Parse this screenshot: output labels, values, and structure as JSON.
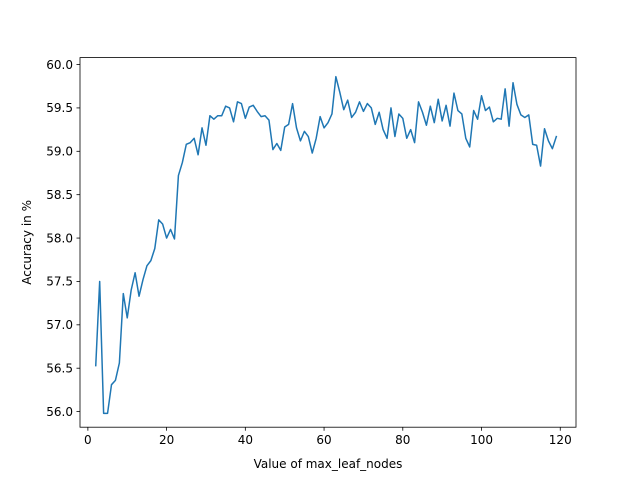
{
  "chart_data": {
    "type": "line",
    "title": "",
    "xlabel": "Value of max_leaf_nodes",
    "ylabel": "Accuracy in %",
    "xlim": [
      -2,
      124
    ],
    "ylim": [
      55.82,
      60.08
    ],
    "xticks": [
      0,
      20,
      40,
      60,
      80,
      100,
      120
    ],
    "xtick_labels": [
      "0",
      "20",
      "40",
      "60",
      "80",
      "100",
      "120"
    ],
    "yticks": [
      56.0,
      56.5,
      57.0,
      57.5,
      58.0,
      58.5,
      59.0,
      59.5,
      60.0
    ],
    "ytick_labels": [
      "56.0",
      "56.5",
      "57.0",
      "57.5",
      "58.0",
      "58.5",
      "59.0",
      "59.5",
      "60.0"
    ],
    "grid": false,
    "legend": "none",
    "line_color": "#1f77b4",
    "x": [
      2,
      3,
      4,
      5,
      6,
      7,
      8,
      9,
      10,
      11,
      12,
      13,
      14,
      15,
      16,
      17,
      18,
      19,
      20,
      21,
      22,
      23,
      24,
      25,
      26,
      27,
      28,
      29,
      30,
      31,
      32,
      33,
      34,
      35,
      36,
      37,
      38,
      39,
      40,
      41,
      42,
      43,
      44,
      45,
      46,
      47,
      48,
      49,
      50,
      51,
      52,
      53,
      54,
      55,
      56,
      57,
      58,
      59,
      60,
      61,
      62,
      63,
      64,
      65,
      66,
      67,
      68,
      69,
      70,
      71,
      72,
      73,
      74,
      75,
      76,
      77,
      78,
      79,
      80,
      81,
      82,
      83,
      84,
      85,
      86,
      87,
      88,
      89,
      90,
      91,
      92,
      93,
      94,
      95,
      96,
      97,
      98,
      99,
      100,
      101,
      102,
      103,
      104,
      105,
      106,
      107,
      108,
      109,
      110,
      111,
      112,
      113,
      114,
      115,
      116,
      117,
      118,
      119
    ],
    "values": [
      56.53,
      57.5,
      55.98,
      55.98,
      56.31,
      56.36,
      56.56,
      57.36,
      57.08,
      57.4,
      57.6,
      57.33,
      57.52,
      57.68,
      57.74,
      57.88,
      58.21,
      58.16,
      58.0,
      58.1,
      57.99,
      58.72,
      58.87,
      59.08,
      59.1,
      59.15,
      58.96,
      59.27,
      59.07,
      59.41,
      59.37,
      59.41,
      59.41,
      59.52,
      59.5,
      59.34,
      59.57,
      59.55,
      59.38,
      59.51,
      59.53,
      59.46,
      59.4,
      59.41,
      59.36,
      59.02,
      59.09,
      59.01,
      59.28,
      59.31,
      59.55,
      59.27,
      59.12,
      59.23,
      59.17,
      58.98,
      59.15,
      59.4,
      59.27,
      59.33,
      59.43,
      59.86,
      59.68,
      59.48,
      59.59,
      59.39,
      59.45,
      59.57,
      59.46,
      59.55,
      59.5,
      59.31,
      59.45,
      59.25,
      59.15,
      59.5,
      59.17,
      59.43,
      59.38,
      59.15,
      59.25,
      59.1,
      59.57,
      59.45,
      59.3,
      59.52,
      59.33,
      59.6,
      59.35,
      59.53,
      59.29,
      59.67,
      59.47,
      59.43,
      59.15,
      59.05,
      59.47,
      59.37,
      59.64,
      59.47,
      59.51,
      59.34,
      59.38,
      59.37,
      59.72,
      59.29,
      59.79,
      59.54,
      59.42,
      59.39,
      59.42,
      59.08,
      59.07,
      58.83,
      59.26,
      59.12,
      59.03,
      59.17
    ]
  }
}
